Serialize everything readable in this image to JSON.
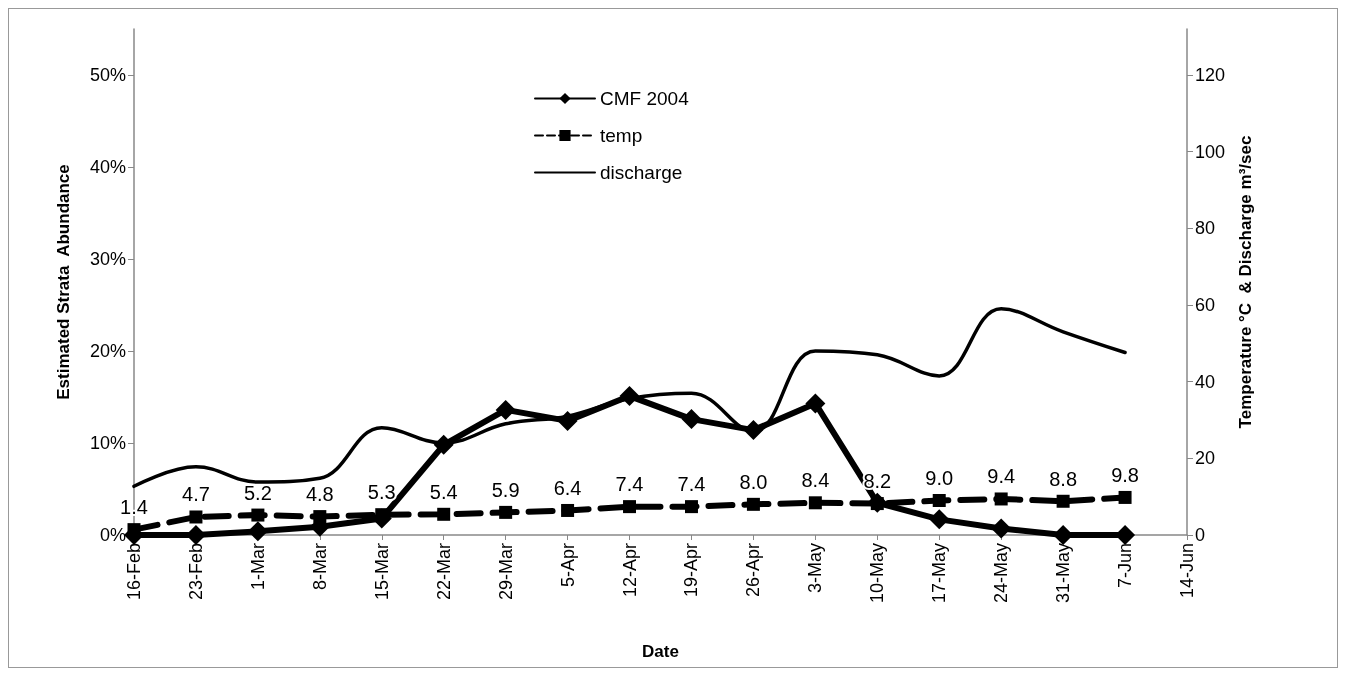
{
  "chart_data": {
    "type": "line",
    "xlabel": "Date",
    "ylabel": "Estimated Strata  Abundance",
    "y2label": "Temperature °C  & Discharge m³/sec",
    "categories": [
      "16-Feb",
      "23-Feb",
      "1-Mar",
      "8-Mar",
      "15-Mar",
      "22-Mar",
      "29-Mar",
      "5-Apr",
      "12-Apr",
      "19-Apr",
      "26-Apr",
      "3-May",
      "10-May",
      "17-May",
      "24-May",
      "31-May",
      "7-Jun",
      "14-Jun"
    ],
    "series": [
      {
        "name": "CMF 2004",
        "color": "#000000",
        "marker": "diamond",
        "line_style": "solid",
        "values": [
          0,
          0,
          0.4,
          0.9,
          1.8,
          9.8,
          13.6,
          12.4,
          15.1,
          12.6,
          11.4,
          14.3,
          3.5,
          1.7,
          0.7,
          0,
          0,
          null
        ]
      },
      {
        "name": "temp",
        "color": "#000000",
        "marker": "square",
        "line_style": "dashed",
        "axis": "y2",
        "values": [
          1.4,
          4.7,
          5.2,
          4.8,
          5.3,
          5.4,
          5.9,
          6.4,
          7.4,
          7.4,
          8.0,
          8.4,
          8.2,
          9.0,
          9.4,
          8.8,
          9.8,
          null
        ],
        "value_labels": [
          "1.4",
          "4.7",
          "5.2",
          "4.8",
          "5.3",
          "5.4",
          "5.9",
          "6.4",
          "7.4",
          "7.4",
          "8.0",
          "8.4",
          "8.2",
          "9.0",
          "9.4",
          "8.8",
          "9.8",
          null
        ]
      },
      {
        "name": "discharge",
        "color": "#000000",
        "marker": "none",
        "line_style": "solid",
        "axis": "y2",
        "values": [
          12.7,
          17.8,
          13.8,
          14.8,
          28,
          24,
          29,
          31,
          35.6,
          37,
          27,
          48,
          47,
          41.5,
          59,
          53,
          47.6,
          null
        ]
      }
    ],
    "ylim": [
      0,
      55
    ],
    "yticks": [
      {
        "value": 0,
        "label": "0%"
      },
      {
        "value": 10,
        "label": "10%"
      },
      {
        "value": 20,
        "label": "20%"
      },
      {
        "value": 30,
        "label": "30%"
      },
      {
        "value": 40,
        "label": "40%"
      },
      {
        "value": 50,
        "label": "50%"
      }
    ],
    "y2lim": [
      0,
      132
    ],
    "y2ticks": [
      0,
      20,
      40,
      60,
      80,
      100,
      120
    ],
    "grid": false,
    "legend": "top"
  }
}
